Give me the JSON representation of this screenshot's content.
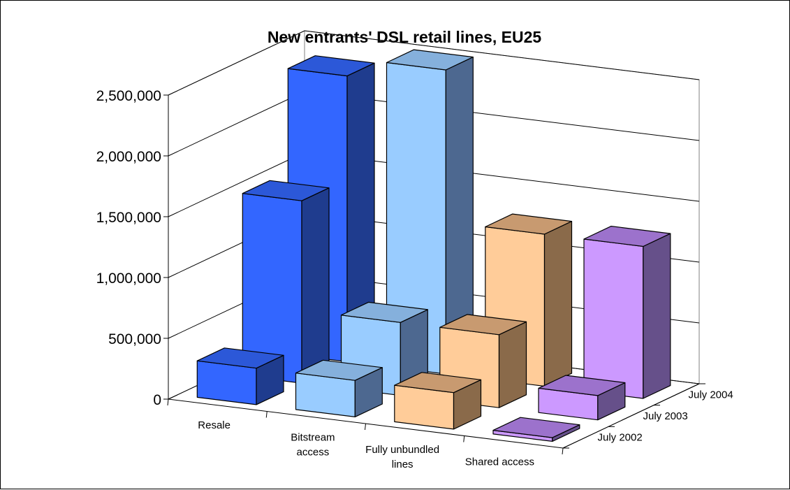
{
  "chart_data": {
    "type": "bar",
    "variant": "3d-column",
    "title": "New entrants' DSL retail lines, EU25",
    "xlabel": "",
    "ylabel": "",
    "categories": [
      "Resale",
      "Bitstream access",
      "Fully unbundled lines",
      "Shared access"
    ],
    "category_label_lines": [
      [
        "Resale"
      ],
      [
        "Bitstream",
        "access"
      ],
      [
        "Fully unbundled",
        "lines"
      ],
      [
        "Shared access"
      ]
    ],
    "ylim": [
      0,
      2500000
    ],
    "yticks": [
      0,
      500000,
      1000000,
      1500000,
      2000000,
      2500000
    ],
    "ytick_labels": [
      "0",
      "500,000",
      "1,000,000",
      "1,500,000",
      "2,000,000",
      "2,500,000"
    ],
    "grid": true,
    "series": [
      {
        "name": "July 2002",
        "values": [
          300000,
          300000,
          300000,
          30000
        ]
      },
      {
        "name": "July 2003",
        "values": [
          1500000,
          600000,
          600000,
          200000
        ]
      },
      {
        "name": "July 2004",
        "values": [
          2350000,
          2500000,
          1250000,
          1250000
        ]
      }
    ],
    "category_colors": [
      {
        "front": "#3366ff",
        "top": "#2c58d8",
        "side": "#1f3c8e"
      },
      {
        "front": "#99ccff",
        "top": "#85b0dc",
        "side": "#4d6890"
      },
      {
        "front": "#ffcc99",
        "top": "#c89a70",
        "side": "#8a6a4a"
      },
      {
        "front": "#cc99ff",
        "top": "#9c72cc",
        "side": "#66508a"
      }
    ]
  }
}
